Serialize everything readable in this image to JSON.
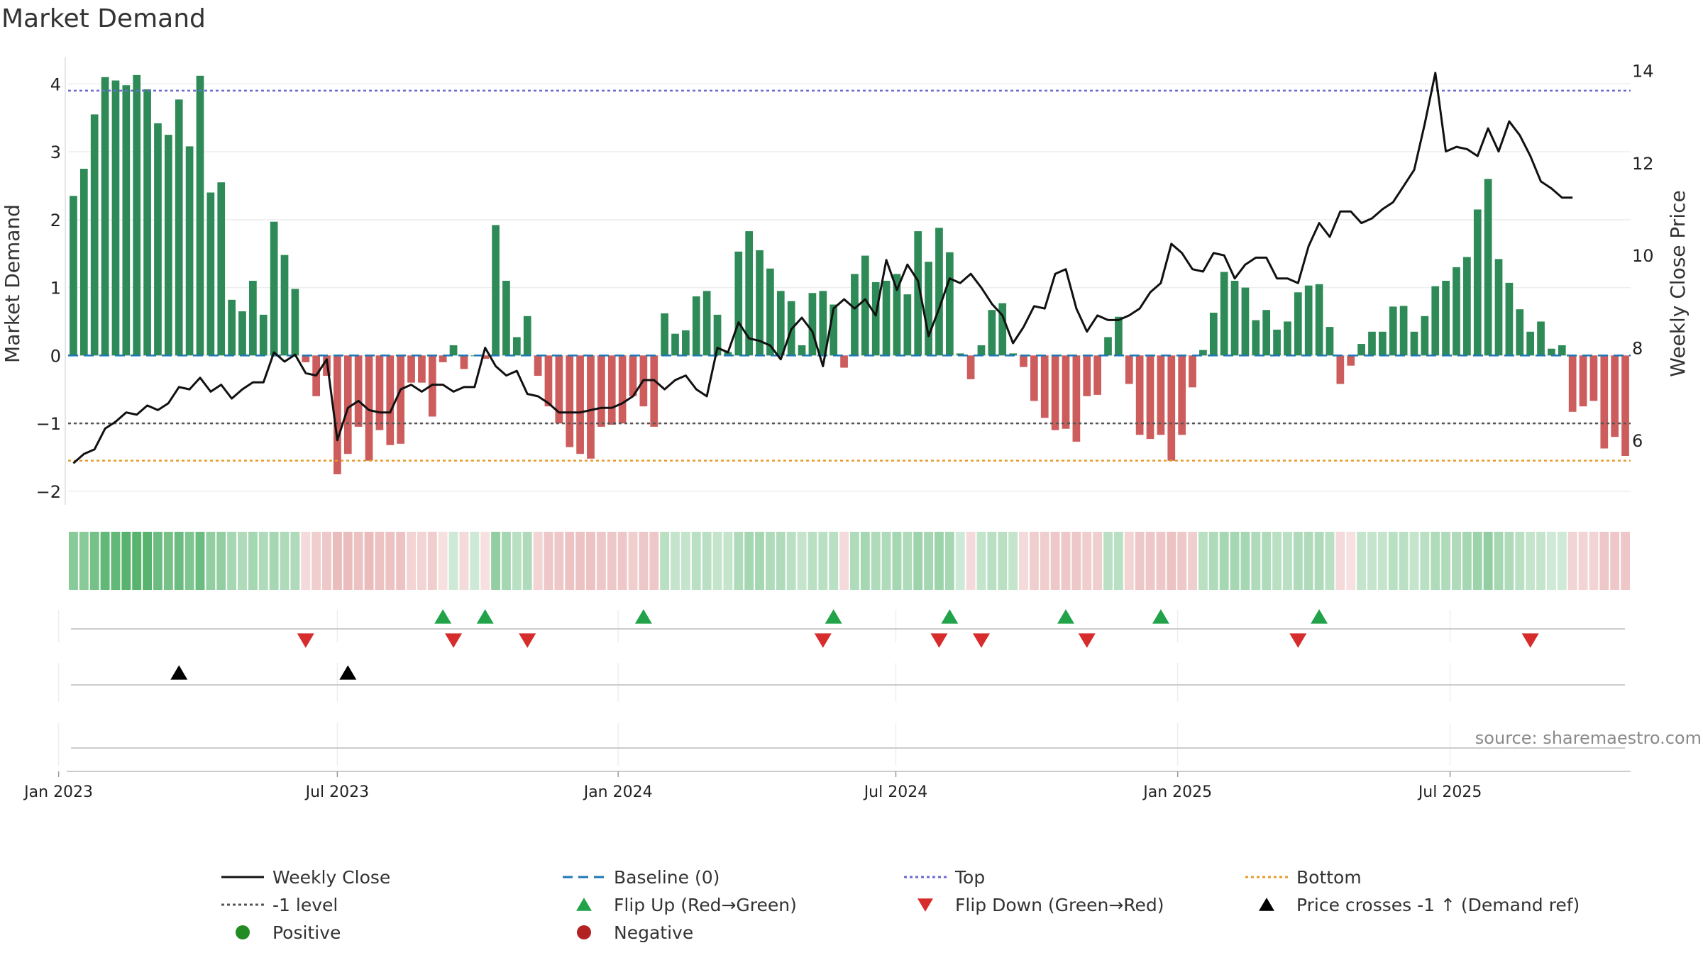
{
  "chart_data": {
    "type": "bar",
    "title": "Market Demand",
    "ylabel_left": "Market Demand",
    "ylabel_right": "Weekly Close Price",
    "source": "source: sharemaestro.com",
    "x_start": "2023-01-02",
    "week_days": 7,
    "left_ylim": [
      -2.2,
      4.4
    ],
    "right_ylim": [
      4.6,
      14.3
    ],
    "left_ticks": [
      {
        "v": 4,
        "t": "4"
      },
      {
        "v": 3,
        "t": "3"
      },
      {
        "v": 2,
        "t": "2"
      },
      {
        "v": 1,
        "t": "1"
      },
      {
        "v": 0,
        "t": "0"
      },
      {
        "v": -1,
        "t": "−1"
      },
      {
        "v": -2,
        "t": "−2"
      }
    ],
    "right_ticks": [
      {
        "v": 14,
        "t": "14"
      },
      {
        "v": 12,
        "t": "12"
      },
      {
        "v": 10,
        "t": "10"
      },
      {
        "v": 8,
        "t": "8"
      },
      {
        "v": 6,
        "t": "6"
      }
    ],
    "x_ticks": [
      {
        "w": -1.4,
        "t": "Jan 2023"
      },
      {
        "w": 25,
        "t": "Jul 2023"
      },
      {
        "w": 51.6,
        "t": "Jan 2024"
      },
      {
        "w": 77.9,
        "t": "Jul 2024"
      },
      {
        "w": 104.6,
        "t": "Jan 2025"
      },
      {
        "w": 130.4,
        "t": "Jul 2025"
      }
    ],
    "top_level": 3.9,
    "bottom_level": -1.55,
    "minus1_level": -1,
    "baseline": 0,
    "demand": [
      2.35,
      2.75,
      3.55,
      4.1,
      4.05,
      3.98,
      4.13,
      3.92,
      3.42,
      3.25,
      3.77,
      3.08,
      4.12,
      2.4,
      2.55,
      0.82,
      0.65,
      1.1,
      0.6,
      1.97,
      1.48,
      0.98,
      -0.1,
      -0.6,
      -0.3,
      -1.75,
      -1.45,
      -1.05,
      -1.55,
      -1.1,
      -1.32,
      -1.3,
      -0.4,
      -0.4,
      -0.9,
      -0.1,
      0.15,
      -0.2,
      0,
      -0.05,
      1.92,
      1.1,
      0.27,
      0.58,
      -0.3,
      -0.75,
      -1.0,
      -1.35,
      -1.45,
      -1.52,
      -1.05,
      -1.02,
      -1.0,
      -0.6,
      -0.75,
      -1.05,
      0.62,
      0.32,
      0.37,
      0.87,
      0.95,
      0.6,
      0.05,
      1.53,
      1.83,
      1.55,
      1.28,
      0.95,
      0.8,
      0.15,
      0.92,
      0.95,
      0.75,
      -0.18,
      1.2,
      1.47,
      1.08,
      1.1,
      1.2,
      0.9,
      1.83,
      1.38,
      1.88,
      1.52,
      0.03,
      -0.35,
      0.15,
      0.67,
      0.77,
      0.03,
      -0.17,
      -0.67,
      -0.92,
      -1.1,
      -1.08,
      -1.27,
      -0.6,
      -0.58,
      0.27,
      0.57,
      -0.42,
      -1.17,
      -1.23,
      -1.17,
      -1.55,
      -1.17,
      -0.47,
      0.08,
      0.63,
      1.23,
      1.1,
      1.0,
      0.52,
      0.67,
      0.38,
      0.5,
      0.93,
      1.03,
      1.05,
      0.42,
      -0.42,
      -0.15,
      0.17,
      0.35,
      0.35,
      0.72,
      0.73,
      0.35,
      0.58,
      1.02,
      1.1,
      1.3,
      1.45,
      2.15,
      2.6,
      1.42,
      1.07,
      0.68,
      0.35,
      0.5,
      0.1,
      0.15,
      -0.83,
      -0.75,
      -0.67,
      -1.37,
      -1.2,
      -1.48
    ],
    "price": [
      5.5,
      5.7,
      5.8,
      6.25,
      6.4,
      6.6,
      6.55,
      6.75,
      6.65,
      6.8,
      7.15,
      7.1,
      7.35,
      7.05,
      7.2,
      6.9,
      7.1,
      7.25,
      7.25,
      7.9,
      7.7,
      7.85,
      7.45,
      7.4,
      7.75,
      6.0,
      6.7,
      6.85,
      6.65,
      6.6,
      6.6,
      7.1,
      7.2,
      7.05,
      7.2,
      7.2,
      7.05,
      7.15,
      7.15,
      8.0,
      7.6,
      7.4,
      7.5,
      7.0,
      6.95,
      6.8,
      6.6,
      6.6,
      6.6,
      6.65,
      6.7,
      6.7,
      6.8,
      6.95,
      7.3,
      7.3,
      7.1,
      7.3,
      7.4,
      7.1,
      6.95,
      8.0,
      7.9,
      8.55,
      8.2,
      8.15,
      8.05,
      7.75,
      8.4,
      8.65,
      8.35,
      7.6,
      8.85,
      9.05,
      8.85,
      9.05,
      8.7,
      9.9,
      9.25,
      9.8,
      9.45,
      8.25,
      8.85,
      9.5,
      9.4,
      9.6,
      9.3,
      8.95,
      8.7,
      8.1,
      8.45,
      8.9,
      8.85,
      9.6,
      9.7,
      8.85,
      8.35,
      8.7,
      8.6,
      8.6,
      8.7,
      8.85,
      9.2,
      9.4,
      10.25,
      10.05,
      9.7,
      9.65,
      10.05,
      10.0,
      9.5,
      9.8,
      9.95,
      9.95,
      9.5,
      9.5,
      9.4,
      10.2,
      10.7,
      10.4,
      10.95,
      10.95,
      10.7,
      10.8,
      11.0,
      11.15,
      11.5,
      11.85,
      12.85,
      13.95,
      12.25,
      12.35,
      12.3,
      12.15,
      12.75,
      12.25,
      12.9,
      12.6,
      12.15,
      11.6,
      11.45,
      11.25,
      11.25
    ],
    "shade_alpha": [
      0.6,
      0.6,
      0.7,
      0.8,
      0.8,
      0.85,
      0.85,
      0.85,
      0.75,
      0.7,
      0.75,
      0.65,
      0.75,
      0.55,
      0.55,
      0.45,
      0.4,
      0.45,
      0.4,
      0.45,
      0.4,
      0.4,
      0.3,
      0.4,
      0.45,
      0.55,
      0.55,
      0.5,
      0.55,
      0.5,
      0.5,
      0.5,
      0.35,
      0.35,
      0.4,
      0.25,
      0.25,
      0.3,
      0.25,
      0.25,
      0.55,
      0.45,
      0.35,
      0.4,
      0.35,
      0.45,
      0.45,
      0.5,
      0.5,
      0.5,
      0.45,
      0.45,
      0.45,
      0.4,
      0.45,
      0.45,
      0.35,
      0.3,
      0.3,
      0.35,
      0.35,
      0.3,
      0.3,
      0.4,
      0.45,
      0.45,
      0.4,
      0.4,
      0.35,
      0.3,
      0.35,
      0.35,
      0.35,
      0.3,
      0.4,
      0.45,
      0.4,
      0.4,
      0.45,
      0.4,
      0.5,
      0.45,
      0.5,
      0.45,
      0.25,
      0.3,
      0.3,
      0.35,
      0.35,
      0.3,
      0.3,
      0.4,
      0.4,
      0.45,
      0.45,
      0.45,
      0.4,
      0.4,
      0.35,
      0.35,
      0.35,
      0.45,
      0.45,
      0.45,
      0.5,
      0.45,
      0.4,
      0.35,
      0.4,
      0.45,
      0.45,
      0.45,
      0.4,
      0.4,
      0.35,
      0.35,
      0.4,
      0.4,
      0.4,
      0.35,
      0.3,
      0.25,
      0.3,
      0.3,
      0.3,
      0.35,
      0.35,
      0.3,
      0.35,
      0.4,
      0.4,
      0.4,
      0.45,
      0.5,
      0.55,
      0.45,
      0.4,
      0.35,
      0.3,
      0.3,
      0.25,
      0.25,
      0.35,
      0.35,
      0.35,
      0.45,
      0.45,
      0.45
    ],
    "flip_up_weeks": [
      35,
      39,
      54,
      72,
      83,
      94,
      103,
      118
    ],
    "flip_down_weeks": [
      22,
      36,
      43,
      71,
      82,
      86,
      96,
      116,
      138
    ],
    "cross_weeks": [
      10,
      26
    ],
    "colors": {
      "positive": "#2e8b57",
      "negative": "#cd5c5c",
      "price": "#111111",
      "baseline": "#1f77b4",
      "top": "#6a6ad0",
      "bottom": "#e69b2e",
      "minus1": "#555555",
      "flip_up": "#22a34a",
      "flip_down": "#d62c2c",
      "cross": "#000000",
      "pos_marker": "#228b22",
      "neg_marker": "#b22222"
    },
    "legend": [
      {
        "key": "weekly_close",
        "label": "Weekly Close",
        "kind": "line",
        "color": "#111111",
        "dash": ""
      },
      {
        "key": "baseline",
        "label": "Baseline (0)",
        "kind": "line",
        "color": "#1f77b4",
        "dash": "14,8"
      },
      {
        "key": "top",
        "label": "Top",
        "kind": "line",
        "color": "#6a6ad0",
        "dash": "4,4"
      },
      {
        "key": "bottom",
        "label": "Bottom",
        "kind": "line",
        "color": "#e69b2e",
        "dash": "4,4"
      },
      {
        "key": "minus1",
        "label": "-1 level",
        "kind": "line",
        "color": "#555555",
        "dash": "4,4"
      },
      {
        "key": "flip_up",
        "label": "Flip Up (Red→Green)",
        "kind": "tri-up",
        "color": "#22a34a",
        "dash": ""
      },
      {
        "key": "flip_down",
        "label": "Flip Down (Green→Red)",
        "kind": "tri-down",
        "color": "#d62c2c",
        "dash": ""
      },
      {
        "key": "cross",
        "label": "Price crosses -1 ↑ (Demand ref)",
        "kind": "tri-up",
        "color": "#000000",
        "dash": ""
      },
      {
        "key": "positive",
        "label": "Positive",
        "kind": "dot",
        "color": "#228b22",
        "dash": ""
      },
      {
        "key": "negative",
        "label": "Negative",
        "kind": "dot",
        "color": "#b22222",
        "dash": ""
      }
    ]
  }
}
